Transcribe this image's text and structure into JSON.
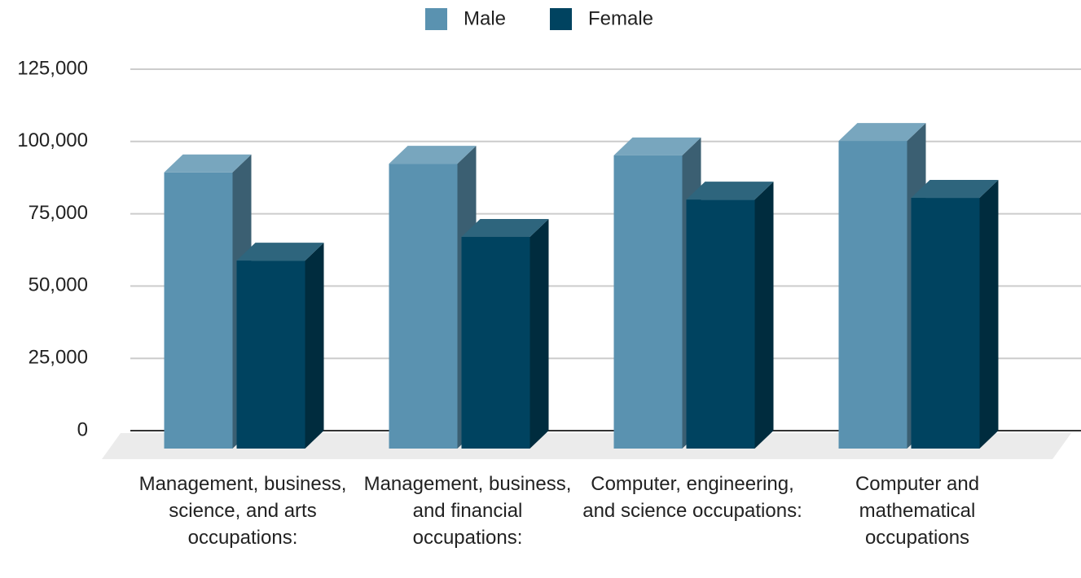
{
  "chart_data": {
    "type": "bar3d",
    "categories": [
      "Management, business, science, and arts occupations:",
      "Management, business, and financial occupations:",
      "Computer, engineering, and science occupations:",
      "Computer and mathematical occupations"
    ],
    "series": [
      {
        "name": "Male",
        "color": "#5a92b0",
        "values": [
          95500,
          98500,
          101400,
          106400
        ]
      },
      {
        "name": "Female",
        "color": "#004360",
        "values": [
          65000,
          73200,
          86100,
          86700
        ]
      }
    ],
    "ylim": [
      0,
      125000
    ],
    "yticks": [
      0,
      {
        "value": 25000,
        "label": "25,000"
      },
      {
        "value": 50000,
        "label": "50,000"
      },
      {
        "value": 75000,
        "label": "75,000"
      },
      {
        "value": 100000,
        "label": "100,000"
      },
      {
        "value": 125000,
        "label": "125,000"
      }
    ],
    "grid": true,
    "legend": "top"
  }
}
